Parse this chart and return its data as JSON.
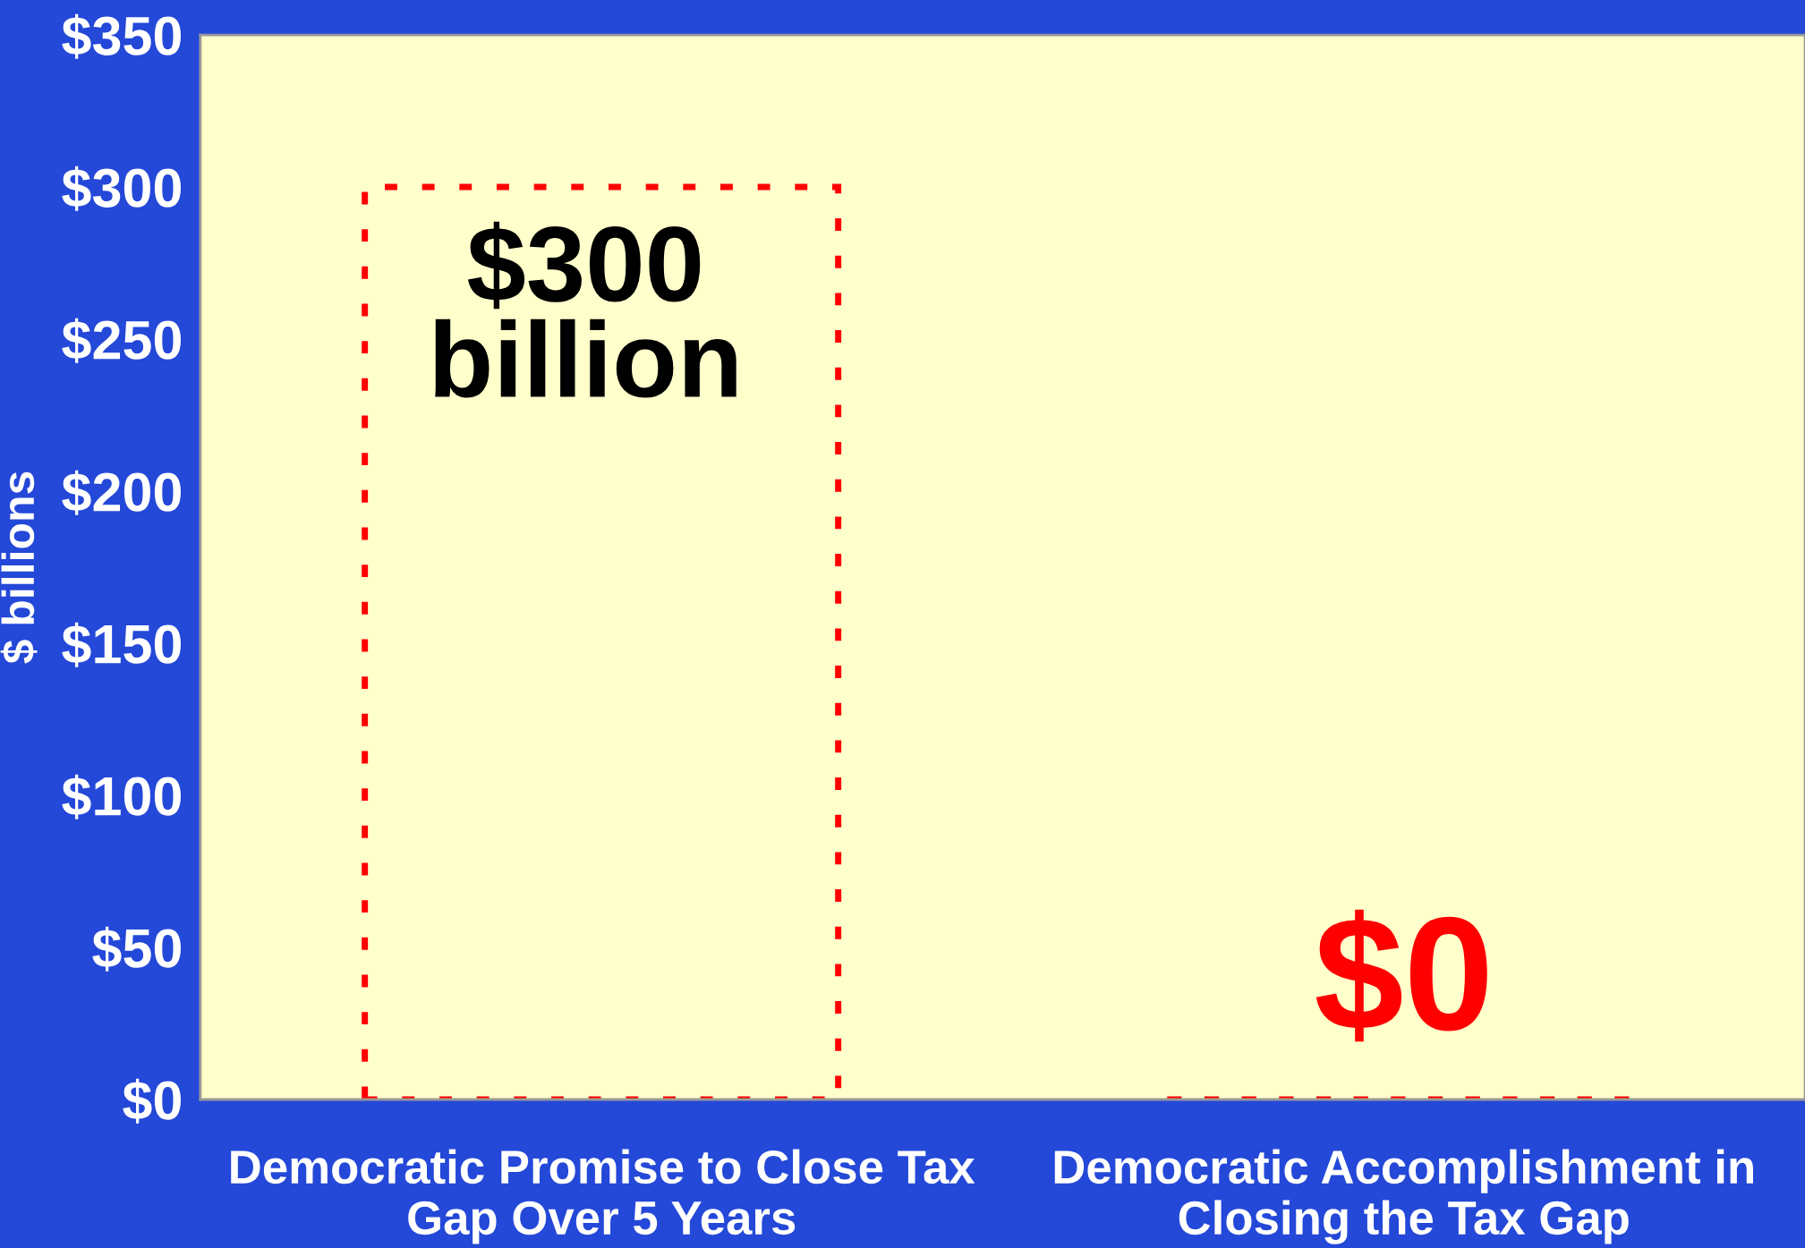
{
  "chart_data": {
    "type": "bar",
    "ylabel": "$ billions",
    "categories": [
      "Democratic Promise to Close Tax\nGap Over 5 Years",
      "Democratic Accomplishment in\nClosing the Tax Gap"
    ],
    "values": [
      300,
      0
    ],
    "colors": [
      "#ff0000",
      "#ff0000"
    ],
    "annotations": [
      {
        "text": "$300\nbillion",
        "x": "Democratic Promise to Close Tax\nGap Over 5 Years",
        "y": 300
      },
      {
        "text": "$0",
        "x": "Democratic Accomplishment in\nClosing the Tax Gap",
        "y": 0
      }
    ],
    "line_style": "dashed",
    "ylim": [
      0,
      350
    ],
    "yticks": [
      {
        "value": 0,
        "label": "$0"
      },
      {
        "value": 50,
        "label": "$50"
      },
      {
        "value": 100,
        "label": "$100"
      },
      {
        "value": 150,
        "label": "$150"
      },
      {
        "value": 200,
        "label": "$200"
      },
      {
        "value": 250,
        "label": "$250"
      },
      {
        "value": 300,
        "label": "$300"
      },
      {
        "value": 350,
        "label": "$350"
      }
    ],
    "grid": false,
    "legend": false
  }
}
